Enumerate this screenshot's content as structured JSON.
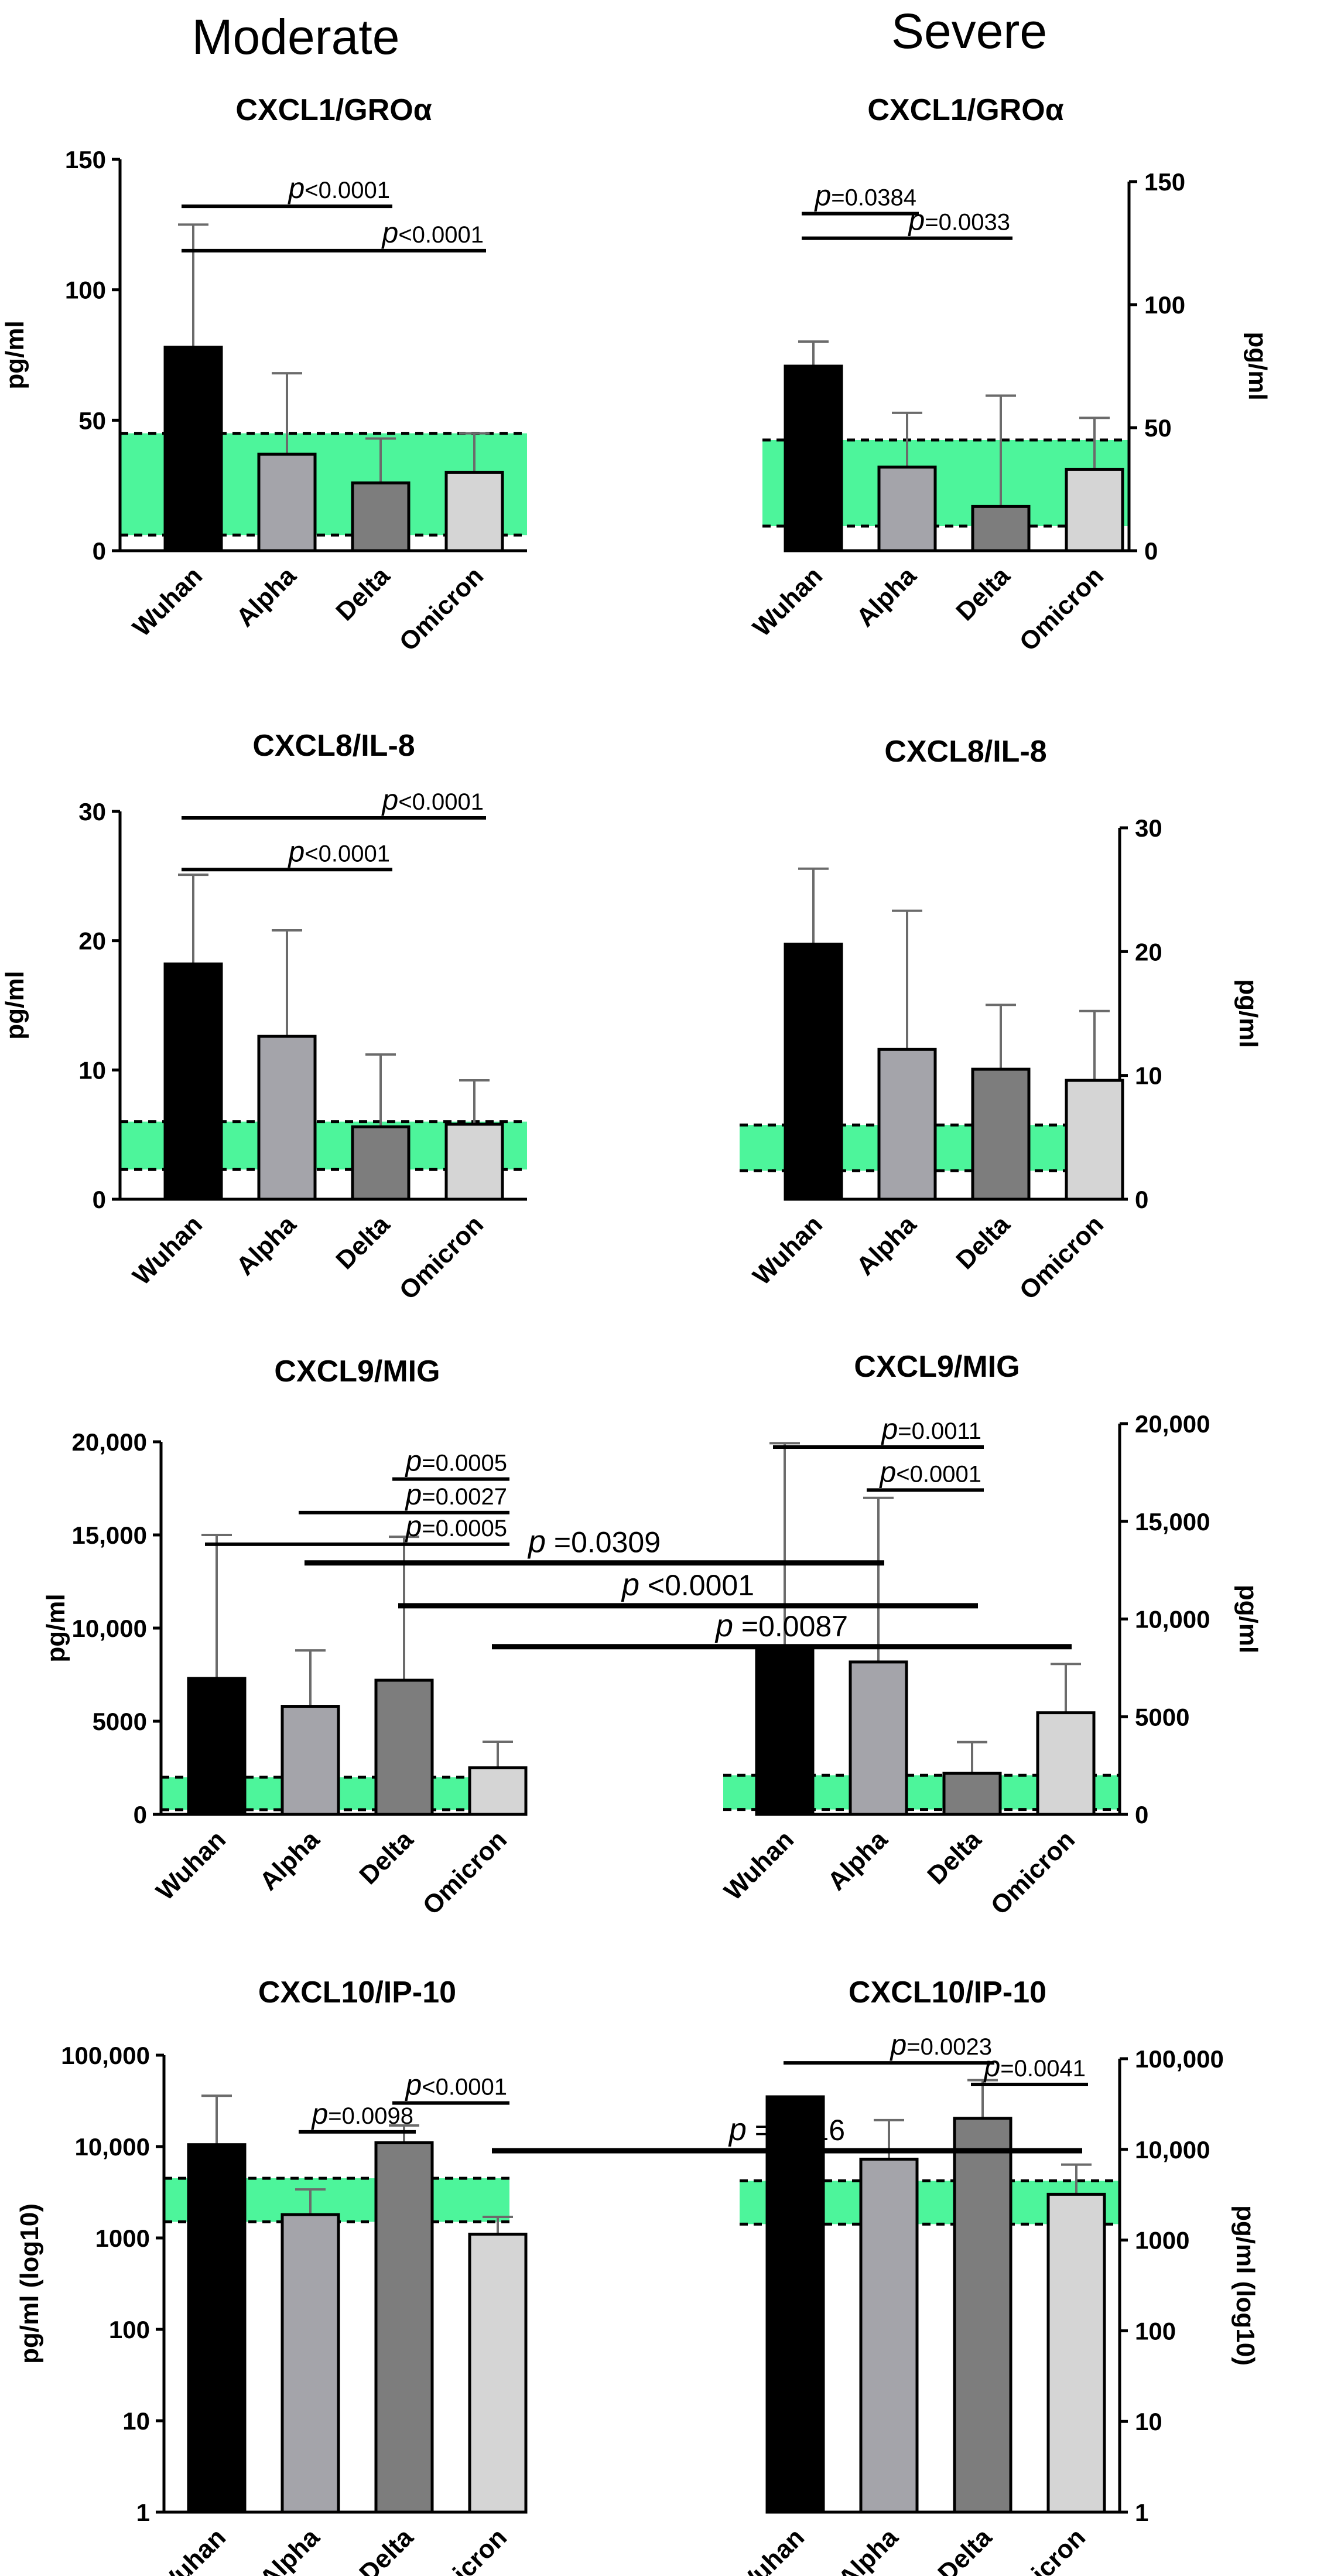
{
  "headers": {
    "moderate": "Moderate",
    "severe": "Severe"
  },
  "chart_data": [
    {
      "id": "cxcl1-moderate",
      "type": "bar",
      "group": "Moderate",
      "title": "CXCL1/GROα",
      "ylabel": "pg/ml",
      "yscale": "linear",
      "ylim": [
        0,
        150
      ],
      "ticks": [
        0,
        50,
        100,
        150
      ],
      "tick_labels": [
        "0",
        "50",
        "100",
        "150"
      ],
      "categories": [
        "Wuhan",
        "Alpha",
        "Delta",
        "Omicron"
      ],
      "values": [
        78,
        37,
        26,
        30
      ],
      "errors": [
        125,
        68,
        43,
        45
      ],
      "colors": [
        "#000000",
        "#a4a4aa",
        "#7d7d7d",
        "#d5d5d5"
      ],
      "reference_band": [
        6,
        45
      ],
      "comparisons": [
        {
          "p": "<0.0001",
          "y": 132,
          "from": 0,
          "to": 2
        },
        {
          "p": "<0.0001",
          "y": 115,
          "from": 0,
          "to": 3
        }
      ]
    },
    {
      "id": "cxcl1-severe",
      "type": "bar",
      "group": "Severe",
      "title": "CXCL1/GROα",
      "ylabel": "pg/ml",
      "yscale": "linear",
      "ylim": [
        0,
        150
      ],
      "ticks": [
        0,
        50,
        100,
        150
      ],
      "tick_labels": [
        "0",
        "50",
        "100",
        "150"
      ],
      "categories": [
        "Wuhan",
        "Alpha",
        "Delta",
        "Omicron"
      ],
      "values": [
        75,
        34,
        18,
        33
      ],
      "errors": [
        85,
        56,
        63,
        54
      ],
      "colors": [
        "#000000",
        "#a4a4aa",
        "#7d7d7d",
        "#d5d5d5"
      ],
      "reference_band": [
        10,
        45
      ],
      "comparisons": [
        {
          "p": "=0.0384",
          "y": 137,
          "from": 0,
          "to": 1
        },
        {
          "p": "=0.0033",
          "y": 127,
          "from": 0,
          "to": 2
        }
      ]
    },
    {
      "id": "cxcl8-moderate",
      "type": "bar",
      "group": "Moderate",
      "title": "CXCL8/IL-8",
      "ylabel": "pg/ml",
      "yscale": "linear",
      "ylim": [
        0,
        30
      ],
      "ticks": [
        0,
        10,
        20,
        30
      ],
      "tick_labels": [
        "0",
        "10",
        "20",
        "30"
      ],
      "categories": [
        "Wuhan",
        "Alpha",
        "Delta",
        "Omicron"
      ],
      "values": [
        18.2,
        12.6,
        5.6,
        5.8
      ],
      "errors": [
        25.1,
        20.8,
        11.2,
        9.2
      ],
      "colors": [
        "#000000",
        "#a4a4aa",
        "#7d7d7d",
        "#d5d5d5"
      ],
      "reference_band": [
        2.3,
        6
      ],
      "comparisons": [
        {
          "p": "<0.0001",
          "y": 29.5,
          "from": 0,
          "to": 3
        },
        {
          "p": "<0.0001",
          "y": 25.5,
          "from": 0,
          "to": 2
        }
      ]
    },
    {
      "id": "cxcl8-severe",
      "type": "bar",
      "group": "Severe",
      "title": "CXCL8/IL-8",
      "ylabel": "pg/ml",
      "yscale": "linear",
      "ylim": [
        0,
        30
      ],
      "ticks": [
        0,
        10,
        20,
        30
      ],
      "tick_labels": [
        "0",
        "10",
        "20",
        "30"
      ],
      "categories": [
        "Wuhan",
        "Alpha",
        "Delta",
        "Omicron"
      ],
      "values": [
        20.6,
        12.1,
        10.5,
        9.6
      ],
      "errors": [
        26.7,
        23.3,
        15.7,
        15.2
      ],
      "colors": [
        "#000000",
        "#a4a4aa",
        "#7d7d7d",
        "#d5d5d5"
      ],
      "reference_band": [
        2.3,
        6
      ],
      "comparisons": []
    },
    {
      "id": "cxcl9-moderate",
      "type": "bar",
      "group": "Moderate",
      "title": "CXCL9/MIG",
      "ylabel": "pg/ml",
      "yscale": "linear",
      "ylim": [
        0,
        20000
      ],
      "ticks": [
        0,
        5000,
        10000,
        15000,
        20000
      ],
      "tick_labels": [
        "0",
        "5000",
        "10,000",
        "15,000",
        "20,000"
      ],
      "categories": [
        "Wuhan",
        "Alpha",
        "Delta",
        "Omicron"
      ],
      "values": [
        7300,
        5800,
        7200,
        2500
      ],
      "errors": [
        15000,
        8800,
        14900,
        3900
      ],
      "colors": [
        "#000000",
        "#a4a4aa",
        "#7d7d7d",
        "#d5d5d5"
      ],
      "reference_band": [
        250,
        2000
      ],
      "comparisons": [
        {
          "p": "=0.0005",
          "y": 18000,
          "from": 2,
          "to": 3
        },
        {
          "p": "=0.0027",
          "y": 16200,
          "from": 1,
          "to": 3
        },
        {
          "p": "=0.0005",
          "y": 14500,
          "from": 0,
          "to": 3
        }
      ]
    },
    {
      "id": "cxcl9-severe",
      "type": "bar",
      "group": "Severe",
      "title": "CXCL9/MIG",
      "ylabel": "pg/ml",
      "yscale": "linear",
      "ylim": [
        0,
        20000
      ],
      "ticks": [
        0,
        5000,
        10000,
        15000,
        20000
      ],
      "tick_labels": [
        "0",
        "5000",
        "10,000",
        "15,000",
        "20,000"
      ],
      "categories": [
        "Wuhan",
        "Alpha",
        "Delta",
        "Omicron"
      ],
      "values": [
        8500,
        7800,
        2100,
        5200
      ],
      "errors": [
        19000,
        16200,
        3700,
        7700
      ],
      "colors": [
        "#000000",
        "#a4a4aa",
        "#7d7d7d",
        "#d5d5d5"
      ],
      "reference_band": [
        250,
        2000
      ],
      "comparisons": [
        {
          "p": "=0.0011",
          "y": 18800,
          "from": 0,
          "to": 2
        },
        {
          "p": "<0.0001",
          "y": 16600,
          "from": 1,
          "to": 2
        }
      ]
    },
    {
      "id": "cxcl10-moderate",
      "type": "bar",
      "group": "Moderate",
      "title": "CXCL10/IP-10",
      "ylabel": "pg/ml (log10)",
      "yscale": "log",
      "ylim": [
        1,
        100000
      ],
      "ticks": [
        1,
        10,
        100,
        1000,
        10000,
        100000
      ],
      "tick_labels": [
        "1",
        "10",
        "100",
        "1000",
        "10,000",
        "100,000"
      ],
      "categories": [
        "Wuhan",
        "Alpha",
        "Delta",
        "Omicron"
      ],
      "values": [
        10500,
        1800,
        11000,
        1100
      ],
      "errors": [
        36000,
        3400,
        17000,
        1700
      ],
      "colors": [
        "#000000",
        "#a4a4aa",
        "#7d7d7d",
        "#d5d5d5"
      ],
      "reference_band": [
        1500,
        4500
      ],
      "comparisons": [
        {
          "p": "<0.0001",
          "y": 30000,
          "from": 2,
          "to": 3
        },
        {
          "p": "=0.0098",
          "y": 14500,
          "from": 1,
          "to": 2
        }
      ]
    },
    {
      "id": "cxcl10-severe",
      "type": "bar",
      "group": "Severe",
      "title": "CXCL10/IP-10",
      "ylabel": "pg/ml (log10)",
      "yscale": "log",
      "ylim": [
        1,
        100000
      ],
      "ticks": [
        1,
        10,
        100,
        1000,
        10000,
        100000
      ],
      "tick_labels": [
        "1",
        "10",
        "100",
        "1000",
        "10,000",
        "100,000"
      ],
      "categories": [
        "Wuhan",
        "Alpha",
        "Delta",
        "Omicron"
      ],
      "values": [
        38000,
        7800,
        22000,
        3200
      ],
      "errors": [
        38000,
        21000,
        58000,
        6800
      ],
      "colors": [
        "#000000",
        "#a4a4aa",
        "#7d7d7d",
        "#d5d5d5"
      ],
      "reference_band": [
        1500,
        4500
      ],
      "comparisons": [
        {
          "p": "=0.0023",
          "y": 90000,
          "from": 0,
          "to": 2
        },
        {
          "p": "=0.0041",
          "y": 52000,
          "from": 2,
          "to": 3
        }
      ]
    }
  ],
  "cross_comparisons": [
    {
      "p": "=0.0309",
      "from": "cxcl9-moderate.1",
      "to": "cxcl9-severe.1",
      "y": 13500
    },
    {
      "p": "<0.0001",
      "from": "cxcl9-moderate.2",
      "to": "cxcl9-severe.2",
      "y": 11200
    },
    {
      "p": "=0.0087",
      "from": "cxcl9-moderate.3",
      "to": "cxcl9-severe.3",
      "y": 9000
    },
    {
      "p": "=0.016",
      "from": "cxcl10-moderate.3",
      "to": "cxcl10-severe.3",
      "y": 9000
    }
  ],
  "colors": {
    "reference_band": "#4df59b",
    "bar_outline": "#000000"
  }
}
